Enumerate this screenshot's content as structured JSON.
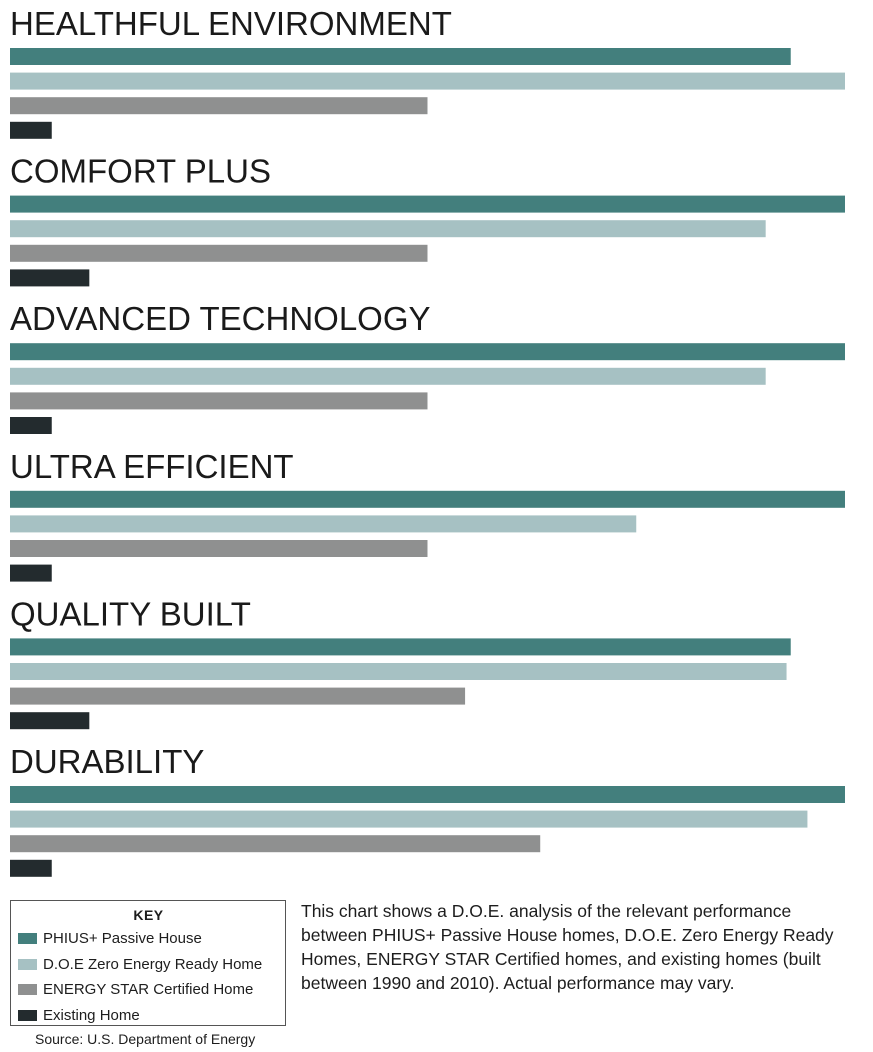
{
  "chart_data": {
    "type": "bar",
    "orientation": "horizontal",
    "categories": [
      "HEALTHFUL ENVIRONMENT",
      "COMFORT PLUS",
      "ADVANCED TECHNOLOGY",
      "ULTRA EFFICIENT",
      "QUALITY BUILT",
      "DURABILITY"
    ],
    "series": [
      {
        "name": "PHIUS+ Passive House",
        "color": "#437f7d",
        "values": [
          93.5,
          100,
          100,
          100,
          93.5,
          100
        ]
      },
      {
        "name": "D.O.E Zero Energy Ready Home",
        "color": "#a6c1c3",
        "values": [
          100,
          90.5,
          90.5,
          75,
          93,
          95.5
        ]
      },
      {
        "name": "ENERGY STAR Certified Home",
        "color": "#8f9090",
        "values": [
          50,
          50,
          50,
          50,
          54.5,
          63.5
        ]
      },
      {
        "name": "Existing Home",
        "color": "#232b2e",
        "values": [
          5,
          9.5,
          5,
          5,
          9.5,
          5
        ]
      }
    ],
    "xlim": [
      0,
      100
    ],
    "grid": false,
    "legend_position": "bottom-left"
  },
  "legend": {
    "title": "KEY",
    "items": [
      {
        "label": "PHIUS+ Passive House",
        "color": "#437f7d"
      },
      {
        "label": "D.O.E Zero Energy Ready Home",
        "color": "#a6c1c3"
      },
      {
        "label": "ENERGY STAR Certified Home",
        "color": "#8f9090"
      },
      {
        "label": "Existing Home",
        "color": "#232b2e"
      }
    ]
  },
  "note": "This chart shows a D.O.E. analysis of the relevant performance between PHIUS+ Passive House homes, D.O.E. Zero Energy Ready Homes, ENERGY STAR Certified homes, and existing homes (built between 1990 and 2010). Actual performance may vary.",
  "source": "Source: U.S. Department of Energy"
}
